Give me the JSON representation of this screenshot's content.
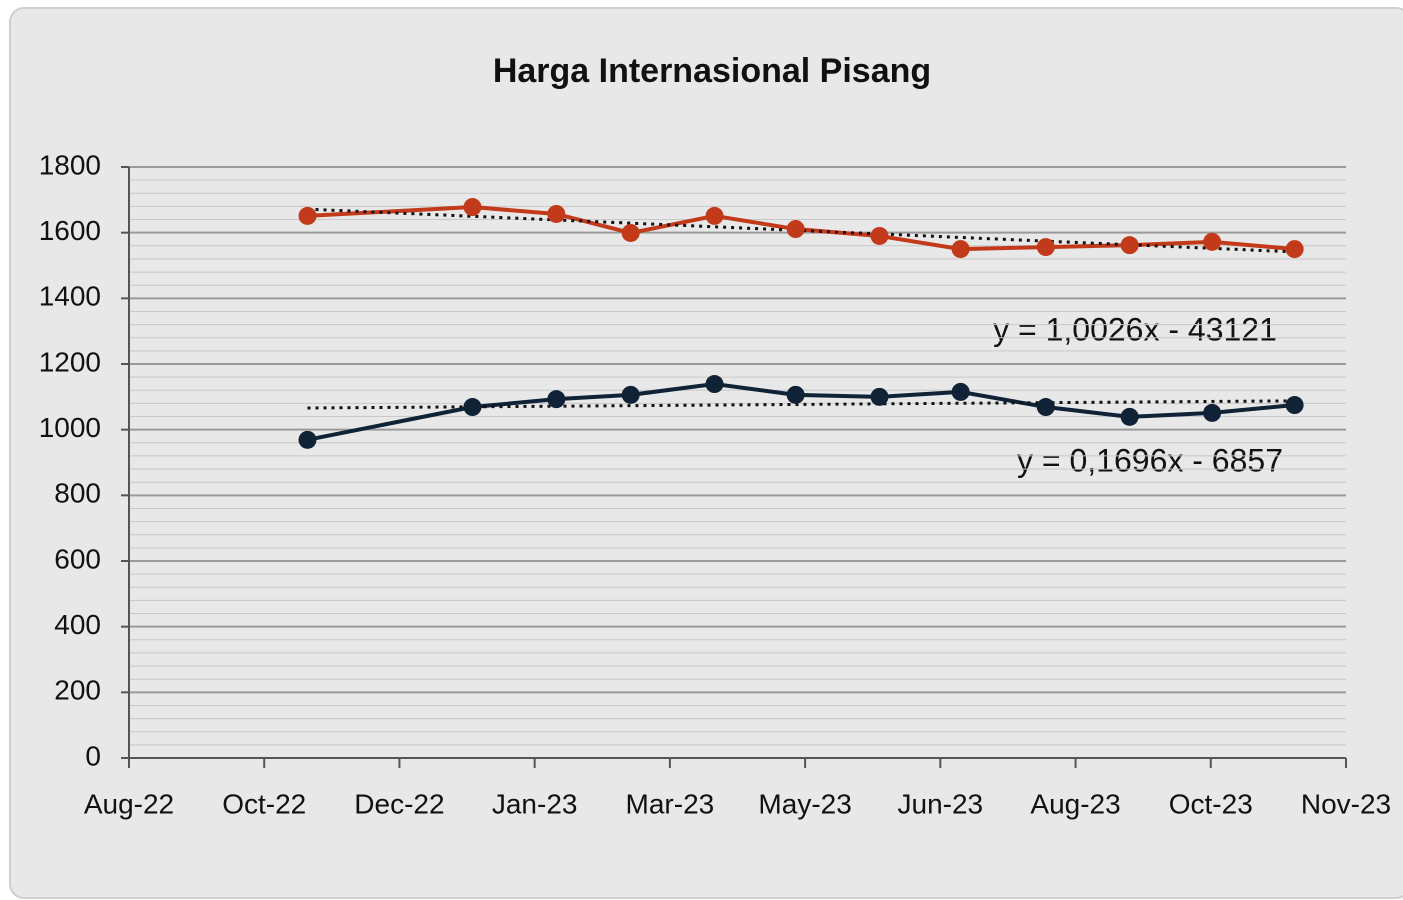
{
  "chart_data": {
    "type": "line",
    "title": "Harga Internasional Pisang",
    "x": [
      1.32,
      2.54,
      3.16,
      3.71,
      4.33,
      4.93,
      5.55,
      6.15,
      6.78,
      7.4,
      8.01,
      8.62
    ],
    "xlim": [
      0,
      9
    ],
    "xticks": [
      {
        "value": 0,
        "label": "Aug-22"
      },
      {
        "value": 1,
        "label": "Oct-22"
      },
      {
        "value": 2,
        "label": "Dec-22"
      },
      {
        "value": 3,
        "label": "Jan-23"
      },
      {
        "value": 4,
        "label": "Mar-23"
      },
      {
        "value": 5,
        "label": "May-23"
      },
      {
        "value": 6,
        "label": "Jun-23"
      },
      {
        "value": 7,
        "label": "Aug-23"
      },
      {
        "value": 8,
        "label": "Oct-23"
      },
      {
        "value": 9,
        "label": "Nov-23"
      }
    ],
    "ylim": [
      0,
      1800
    ],
    "yticks": [
      0,
      200,
      400,
      600,
      800,
      1000,
      1200,
      1400,
      1600,
      1800
    ],
    "grid": true,
    "trendline": true,
    "series": [
      {
        "color": "#c23a1a",
        "values": [
          1651,
          1678,
          1657,
          1599,
          1651,
          1611,
          1590,
          1550,
          1556,
          1562,
          1572,
          1550
        ]
      },
      {
        "color": "#0f2236",
        "values": [
          969,
          1069,
          1093,
          1106,
          1139,
          1106,
          1100,
          1115,
          1069,
          1039,
          1051,
          1075
        ]
      }
    ],
    "annotations": [
      "y = 1,0026x - 43121",
      "y = 0,1696x - 6857"
    ]
  }
}
